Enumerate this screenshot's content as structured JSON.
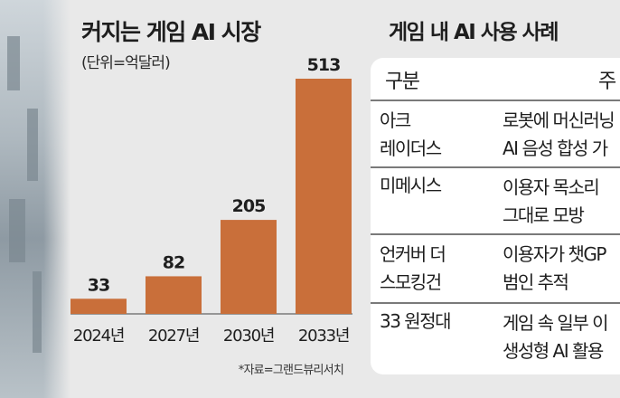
{
  "photo": {
    "description_icon": "building-photo"
  },
  "chart_data": {
    "type": "bar",
    "title": "커지는 게임 AI 시장",
    "unit": "(단위=억달러)",
    "categories": [
      "2024년",
      "2027년",
      "2030년",
      "2033년"
    ],
    "values": [
      33,
      82,
      205,
      513
    ],
    "ylim": [
      0,
      513
    ],
    "bar_color": "#c96f3a",
    "source": "*자료=그랜드뷰리서치",
    "grid": false
  },
  "table": {
    "title": "게임 내 AI 사용 사례",
    "headers": {
      "name": "구분",
      "desc": "주"
    },
    "rows": [
      {
        "name": "아크\n레이더스",
        "desc": "로봇에 머신러닝\nAI 음성 합성 가"
      },
      {
        "name": "미메시스",
        "desc": "이용자 목소리\n그대로 모방"
      },
      {
        "name": "언커버 더\n스모킹건",
        "desc": "이용자가 챗GP\n범인 추적"
      },
      {
        "name": "33 원정대",
        "desc": "게임 속 일부 이\n생성형 AI 활용"
      }
    ]
  }
}
